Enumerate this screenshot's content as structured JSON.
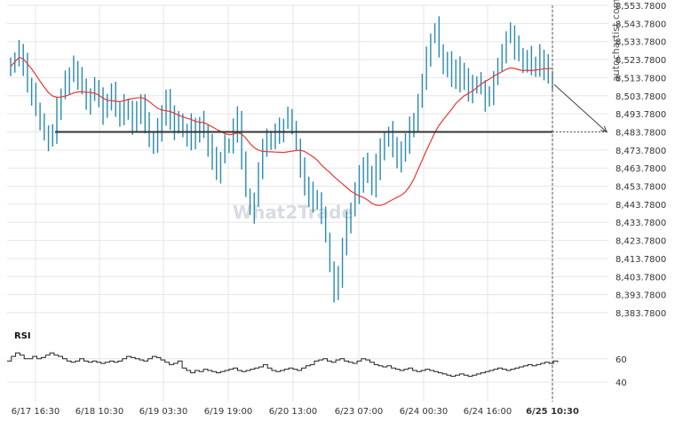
{
  "brand": "autochartist.com",
  "watermark": "What2Trade",
  "colors": {
    "candle": "#2a8ab0",
    "ma": "#e53935",
    "level": "#333333",
    "grid": "#e6e6e6",
    "rsi": "#222222",
    "dashed": "#555555"
  },
  "chart_data": [
    {
      "type": "line",
      "ylim": [
        8383.78,
        8553.78
      ],
      "y_ticks": [
        "8,553.7800",
        "8,543.7800",
        "8,533.7800",
        "8,523.7800",
        "8,513.7800",
        "8,503.7800",
        "8,493.7800",
        "8,483.7800",
        "8,473.7800",
        "8,463.7800",
        "8,453.7800",
        "8,443.7800",
        "8,433.7800",
        "8,423.7800",
        "8,413.7800",
        "8,403.7800",
        "8,393.7800",
        "8,383.7800"
      ],
      "x_ticks": [
        "6/17 16:30",
        "6/18 10:30",
        "6/19 03:30",
        "6/19 19:00",
        "6/20 13:00",
        "6/23 07:00",
        "6/24 00:30",
        "6/24 16:00",
        "6/25 10:30"
      ],
      "highlight_x_tick": "6/25 10:30",
      "level": 8483.78,
      "prices": [
        8520,
        8525,
        8530,
        8522,
        8510,
        8505,
        8495,
        8488,
        8482,
        8478,
        8485,
        8495,
        8505,
        8510,
        8515,
        8520,
        8515,
        8508,
        8500,
        8505,
        8510,
        8505,
        8495,
        8500,
        8505,
        8498,
        8490,
        8500,
        8495,
        8488,
        8493,
        8500,
        8490,
        8480,
        8475,
        8485,
        8495,
        8500,
        8492,
        8485,
        8490,
        8485,
        8480,
        8488,
        8482,
        8490,
        8485,
        8478,
        8470,
        8462,
        8470,
        8475,
        8478,
        8485,
        8492,
        8470,
        8450,
        8440,
        8445,
        8460,
        8475,
        8482,
        8478,
        8485,
        8480,
        8488,
        8492,
        8485,
        8478,
        8465,
        8455,
        8450,
        8445,
        8448,
        8440,
        8425,
        8410,
        8395,
        8405,
        8420,
        8435,
        8442,
        8450,
        8458,
        8465,
        8460,
        8455,
        8465,
        8475,
        8478,
        8482,
        8475,
        8468,
        8472,
        8478,
        8485,
        8492,
        8500,
        8510,
        8525,
        8535,
        8540,
        8530,
        8520,
        8525,
        8515,
        8520,
        8510,
        8515,
        8505,
        8508,
        8512,
        8508,
        8500,
        8505,
        8515,
        8520,
        8525,
        8535,
        8540,
        8530,
        8525,
        8520,
        8525,
        8520,
        8522,
        8525,
        8520,
        8515,
        8510
      ],
      "ma_period": 20,
      "projection": {
        "from": 8510,
        "to": 8483.78
      },
      "rsi": {
        "label": "RSI",
        "ticks": [
          60,
          40
        ],
        "ylim": [
          28,
          78
        ],
        "values": [
          58,
          62,
          65,
          63,
          60,
          60,
          62,
          60,
          61,
          63,
          65,
          63,
          62,
          60,
          58,
          57,
          58,
          60,
          58,
          57,
          58,
          57,
          56,
          57,
          58,
          57,
          58,
          60,
          62,
          61,
          60,
          59,
          58,
          60,
          62,
          61,
          59,
          57,
          55,
          56,
          58,
          52,
          50,
          48,
          50,
          49,
          51,
          50,
          49,
          48,
          49,
          50,
          51,
          52,
          50,
          49,
          50,
          51,
          52,
          53,
          55,
          52,
          50,
          49,
          50,
          51,
          52,
          51,
          50,
          52,
          54,
          55,
          58,
          59,
          60,
          58,
          57,
          59,
          60,
          58,
          57,
          56,
          58,
          60,
          59,
          57,
          55,
          54,
          53,
          54,
          52,
          51,
          50,
          51,
          52,
          50,
          49,
          50,
          51,
          50,
          49,
          48,
          47,
          46,
          45,
          46,
          47,
          46,
          45,
          46,
          47,
          48,
          49,
          50,
          51,
          52,
          51,
          50,
          51,
          52,
          53,
          54,
          55,
          54,
          55,
          56,
          57,
          56,
          58,
          57
        ]
      }
    }
  ]
}
